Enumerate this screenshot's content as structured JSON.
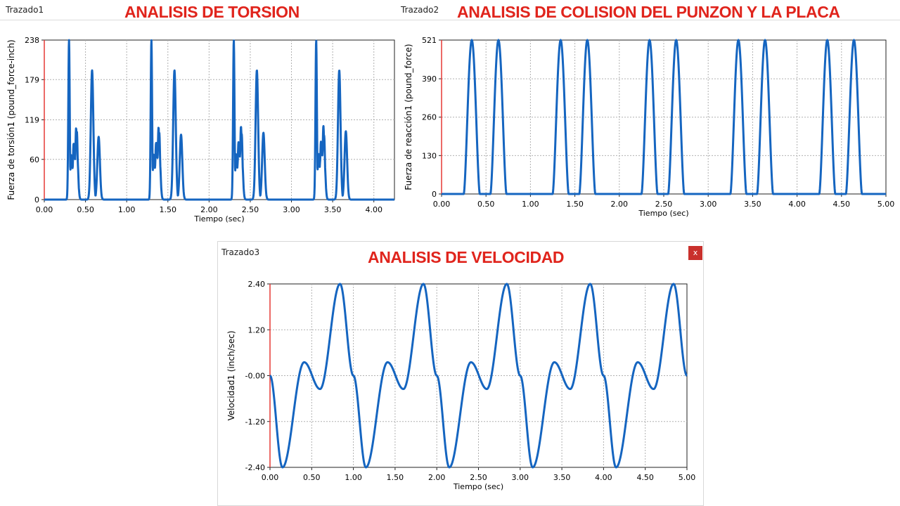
{
  "windows": [
    {
      "title": "Trazado1",
      "banner": "ANALISIS DE TORSION"
    },
    {
      "title": "Trazado2",
      "banner": "ANALISIS DE COLISION DEL PUNZON Y LA PLACA"
    },
    {
      "title": "Trazado3",
      "banner": "ANALISIS DE VELOCIDAD",
      "close_label": "x"
    }
  ],
  "colors": {
    "series": "#1565c0",
    "origin_axis": "#e53935",
    "grid": "#b0b0b0",
    "banner": "#e0241c"
  },
  "chart_data": [
    {
      "type": "line",
      "xlabel": "Tiempo (sec)",
      "ylabel": "Fuerza de torsión1 (pound_force-inch)",
      "xlim": [
        0,
        4.25
      ],
      "ylim": [
        0,
        238
      ],
      "xticks": [
        "0.00",
        "0.50",
        "1.00",
        "1.50",
        "2.00",
        "2.50",
        "3.00",
        "3.50",
        "4.00"
      ],
      "yticks": [
        "0",
        "60",
        "119",
        "179",
        "238"
      ],
      "grid": true,
      "series": [
        {
          "pattern_period": 1.0,
          "cycle_start": 0.29,
          "cycle_end": 0.7,
          "peaks": [
            {
              "t": 0.3,
              "v": 238
            },
            {
              "t": 0.33,
              "v": 70
            },
            {
              "t": 0.36,
              "v": 88
            },
            {
              "t": 0.39,
              "v": 112
            },
            {
              "t": 0.58,
              "v": 193
            },
            {
              "t": 0.66,
              "v": 105
            }
          ],
          "cycles": 4
        }
      ]
    },
    {
      "type": "line",
      "xlabel": "Tiempo (sec)",
      "ylabel": "Fuerza de reacción1 (pound_force)",
      "xlim": [
        0,
        5.0
      ],
      "ylim": [
        0,
        521
      ],
      "xticks": [
        "0.00",
        "0.50",
        "1.00",
        "1.50",
        "2.00",
        "2.50",
        "3.00",
        "3.50",
        "4.00",
        "4.50",
        "5.00"
      ],
      "yticks": [
        "0",
        "130",
        "260",
        "390",
        "521"
      ],
      "grid": true,
      "series": [
        {
          "pattern_period": 1.0,
          "pulse_centers": [
            0.34,
            0.64
          ],
          "pulse_half_width": 0.09,
          "peak": 521,
          "cycles": 5
        }
      ]
    },
    {
      "type": "line",
      "xlabel": "Tiempo (sec)",
      "ylabel": "Velocidad1 (inch/sec)",
      "xlim": [
        0,
        5.0
      ],
      "ylim": [
        -2.4,
        2.4
      ],
      "xticks": [
        "0.00",
        "0.50",
        "1.00",
        "1.50",
        "2.00",
        "2.50",
        "3.00",
        "3.50",
        "4.00",
        "4.50",
        "5.00"
      ],
      "yticks": [
        "2.40",
        "1.20",
        "-0.00",
        "-1.20",
        "-2.40"
      ],
      "grid": true,
      "series": [
        {
          "period": 1.0,
          "keypoints": [
            {
              "t": 0.0,
              "v": 0.0
            },
            {
              "t": 0.15,
              "v": -2.4
            },
            {
              "t": 0.41,
              "v": 0.35
            },
            {
              "t": 0.6,
              "v": -0.35
            },
            {
              "t": 0.84,
              "v": 2.4
            },
            {
              "t": 1.0,
              "v": 0.0
            }
          ],
          "cycles": 5
        }
      ]
    }
  ]
}
